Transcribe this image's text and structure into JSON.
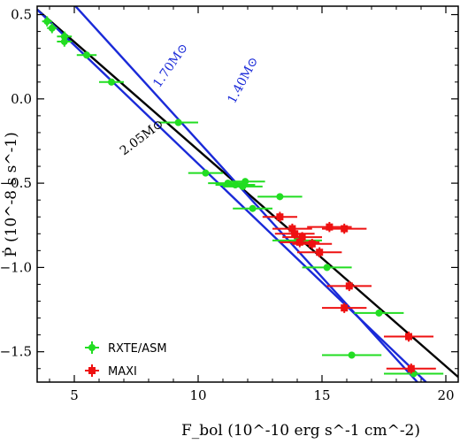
{
  "chart_data": {
    "type": "scatter",
    "title": "",
    "xlabel": "F_bol (10^-10 erg s^-1 cm^-2)",
    "ylabel": "Ṗ (10^-8 s s^-1)",
    "xlim": [
      3.5,
      20.5
    ],
    "ylim": [
      -1.68,
      0.55
    ],
    "x_ticks": [
      5,
      10,
      15,
      20
    ],
    "y_ticks": [
      0.5,
      0.0,
      -0.5,
      -1.0,
      -1.5
    ],
    "x_tick_labels": [
      "5",
      "10",
      "15",
      "20"
    ],
    "y_tick_labels": [
      "0.5",
      "0.0",
      "−0.5",
      "−1.0",
      "−1.5"
    ],
    "grid": false,
    "legend_position": "bottom-left",
    "series": [
      {
        "name": "RXTE/ASM",
        "color": "#22dd22",
        "marker": "circle",
        "points": [
          {
            "x": 3.9,
            "y": 0.46,
            "xerr": 0.2,
            "yerr": 0.03
          },
          {
            "x": 4.1,
            "y": 0.42,
            "xerr": 0.2,
            "yerr": 0.03
          },
          {
            "x": 4.6,
            "y": 0.37,
            "xerr": 0.3,
            "yerr": 0.03
          },
          {
            "x": 4.6,
            "y": 0.34,
            "xerr": 0.3,
            "yerr": 0.03
          },
          {
            "x": 5.5,
            "y": 0.26,
            "xerr": 0.4,
            "yerr": 0.02
          },
          {
            "x": 6.5,
            "y": 0.1,
            "xerr": 0.5,
            "yerr": 0.02
          },
          {
            "x": 9.2,
            "y": -0.14,
            "xerr": 0.8,
            "yerr": 0.02
          },
          {
            "x": 10.3,
            "y": -0.44,
            "xerr": 0.7,
            "yerr": 0.02
          },
          {
            "x": 11.2,
            "y": -0.5,
            "xerr": 0.8,
            "yerr": 0.02
          },
          {
            "x": 11.5,
            "y": -0.51,
            "xerr": 0.8,
            "yerr": 0.02
          },
          {
            "x": 11.8,
            "y": -0.52,
            "xerr": 0.8,
            "yerr": 0.02
          },
          {
            "x": 11.9,
            "y": -0.49,
            "xerr": 0.8,
            "yerr": 0.02
          },
          {
            "x": 12.2,
            "y": -0.65,
            "xerr": 0.8,
            "yerr": 0.02
          },
          {
            "x": 13.3,
            "y": -0.58,
            "xerr": 0.9,
            "yerr": 0.02
          },
          {
            "x": 14.0,
            "y": -0.84,
            "xerr": 1.0,
            "yerr": 0.02
          },
          {
            "x": 15.2,
            "y": -1.0,
            "xerr": 1.0,
            "yerr": 0.02
          },
          {
            "x": 17.3,
            "y": -1.27,
            "xerr": 1.0,
            "yerr": 0.02
          },
          {
            "x": 16.2,
            "y": -1.52,
            "xerr": 1.2,
            "yerr": 0.02
          },
          {
            "x": 18.7,
            "y": -1.63,
            "xerr": 1.2,
            "yerr": 0.02
          }
        ]
      },
      {
        "name": "MAXI",
        "color": "#ee1111",
        "marker": "square",
        "points": [
          {
            "x": 13.3,
            "y": -0.7,
            "xerr": 0.7,
            "yerr": 0.03
          },
          {
            "x": 13.8,
            "y": -0.77,
            "xerr": 0.8,
            "yerr": 0.03
          },
          {
            "x": 13.9,
            "y": -0.8,
            "xerr": 0.8,
            "yerr": 0.03
          },
          {
            "x": 14.2,
            "y": -0.82,
            "xerr": 0.8,
            "yerr": 0.03
          },
          {
            "x": 14.1,
            "y": -0.85,
            "xerr": 0.8,
            "yerr": 0.03
          },
          {
            "x": 14.6,
            "y": -0.86,
            "xerr": 0.8,
            "yerr": 0.03
          },
          {
            "x": 15.3,
            "y": -0.76,
            "xerr": 0.9,
            "yerr": 0.03
          },
          {
            "x": 15.9,
            "y": -0.77,
            "xerr": 0.9,
            "yerr": 0.03
          },
          {
            "x": 14.9,
            "y": -0.91,
            "xerr": 0.9,
            "yerr": 0.03
          },
          {
            "x": 16.1,
            "y": -1.11,
            "xerr": 0.9,
            "yerr": 0.03
          },
          {
            "x": 15.9,
            "y": -1.24,
            "xerr": 0.9,
            "yerr": 0.03
          },
          {
            "x": 18.5,
            "y": -1.41,
            "xerr": 1.0,
            "yerr": 0.03
          },
          {
            "x": 18.6,
            "y": -1.6,
            "xerr": 1.0,
            "yerr": 0.03
          }
        ]
      }
    ],
    "model_lines": [
      {
        "label": "2.05M⊙",
        "color": "#000000",
        "x": [
          3.5,
          20.5
        ],
        "y": [
          0.53,
          -1.65
        ]
      },
      {
        "label": "1.70M⊙",
        "color": "#1a2ad8",
        "x": [
          3.5,
          19.2
        ],
        "y": [
          0.53,
          -1.68
        ]
      },
      {
        "label": "1.40M⊙",
        "color": "#1a2ad8",
        "x": [
          3.5,
          18.85
        ],
        "y": [
          0.8,
          -1.68
        ]
      }
    ]
  }
}
